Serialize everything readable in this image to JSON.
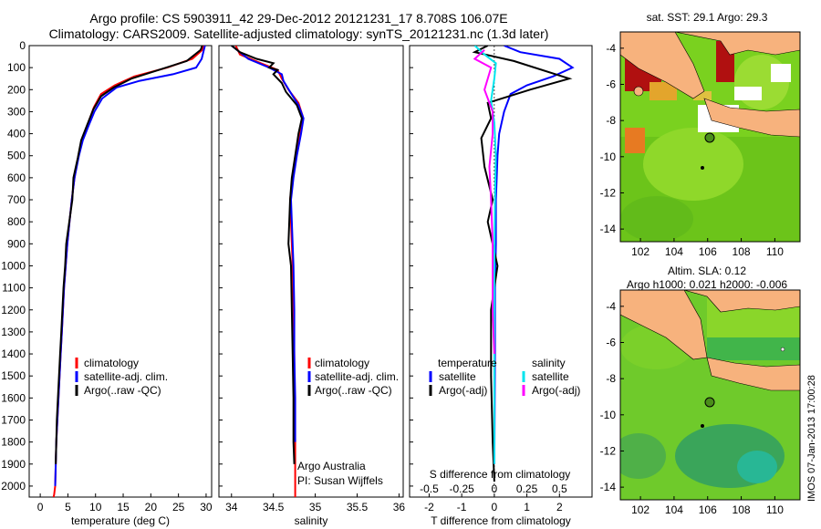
{
  "header": {
    "line1": "Argo profile: CS 5903911_42 29-Dec-2012 20121231_17 8.708S 106.07E",
    "line2": "Climatology: CARS2009. Satellite-adjusted climatology: synTS_20121231.nc (1.3d later)"
  },
  "depth_ticks": [
    "0",
    "100",
    "200",
    "300",
    "400",
    "500",
    "600",
    "700",
    "800",
    "900",
    "1000",
    "1100",
    "1200",
    "1300",
    "1400",
    "1500",
    "1600",
    "1700",
    "1800",
    "1900",
    "2000"
  ],
  "colors": {
    "climatology": "#ff0000",
    "satellite": "#0000ff",
    "argo": "#000000",
    "sal_satellite": "#00e5ee",
    "sal_argo": "#ff00ff",
    "land": "#f7b27d",
    "sst_green": "#7ad11f"
  },
  "panels": {
    "temperature": {
      "xlabel": "temperature (deg C)",
      "ticks": [
        "0",
        "5",
        "10",
        "15",
        "20",
        "25",
        "30"
      ],
      "legend": [
        "climatology",
        "satellite-adj. clim.",
        "Argo(..raw -QC)"
      ]
    },
    "salinity": {
      "xlabel": "salinity",
      "ticks": [
        "34",
        "34.5",
        "35",
        "35.5",
        "36"
      ],
      "legend": [
        "climatology",
        "satellite-adj. clim.",
        "Argo(..raw -QC)"
      ],
      "note1": "Argo Australia",
      "note2": "PI: Susan Wijffels"
    },
    "difference": {
      "xlabel": "T difference from climatology",
      "top_label": "S difference from climatology",
      "ticks_bottom": [
        "-2",
        "-1",
        "0",
        "1",
        "2"
      ],
      "ticks_top": [
        "-0.5",
        "-0.25",
        "0",
        "0.25",
        "0.5"
      ],
      "legend_head_t": "temperature",
      "legend_head_s": "salinity",
      "legend_t": [
        "satellite",
        "Argo(-adj)"
      ],
      "legend_s": [
        "satellite",
        "Argo(-adj)"
      ]
    }
  },
  "maps": {
    "top_title": "sat. SST: 29.1  Argo: 29.3",
    "bottom_title1": "Altim. SLA: 0.12",
    "bottom_title2": "Argo h1000: 0.021  h2000: -0.006",
    "lat_ticks": [
      "-4",
      "-6",
      "-8",
      "-10",
      "-12",
      "-14"
    ],
    "lon_ticks": [
      "102",
      "104",
      "106",
      "108",
      "110"
    ]
  },
  "stamp": "IMOS 07-Jan-2013 17:00:28",
  "chart_data": [
    {
      "type": "line",
      "xlabel": "temperature (deg C)",
      "ylabel": "",
      "xlim": [
        -2,
        31
      ],
      "ylim": [
        2050,
        0
      ],
      "y_inverted": true,
      "series": [
        {
          "name": "climatology",
          "color": "#ff0000",
          "x": [
            29.5,
            29.3,
            27.5,
            23,
            17,
            13.5,
            11,
            9.7,
            8.7,
            7.6,
            6.9,
            6.2,
            5.7,
            5.3,
            4.9,
            4.6,
            4.3,
            4.1,
            3.9,
            3.7,
            3.5,
            3.3,
            3.1,
            2.9,
            2.8,
            2.7,
            2.6,
            2.5,
            2.4
          ],
          "y": [
            0,
            20,
            60,
            100,
            140,
            180,
            220,
            280,
            350,
            420,
            500,
            600,
            700,
            800,
            900,
            1000,
            1100,
            1200,
            1300,
            1400,
            1500,
            1600,
            1700,
            1800,
            1900,
            2000,
            2020,
            2040,
            2050
          ]
        },
        {
          "name": "satellite-adj. clim.",
          "color": "#0000ff",
          "x": [
            29.8,
            29.6,
            29.2,
            28.2,
            24,
            18,
            13.8,
            11.2,
            9.8,
            8.8,
            7.7,
            7.0,
            6.2,
            5.7,
            5.3,
            4.9,
            4.6,
            4.3,
            4.1,
            3.9,
            3.7,
            3.5,
            3.3,
            3.1,
            2.9,
            2.8,
            2.7
          ],
          "y": [
            0,
            20,
            60,
            100,
            130,
            160,
            190,
            240,
            300,
            360,
            430,
            500,
            600,
            700,
            800,
            900,
            1000,
            1100,
            1200,
            1300,
            1400,
            1500,
            1600,
            1700,
            1800,
            1900,
            2000
          ]
        },
        {
          "name": "Argo(..raw -QC)",
          "color": "#000000",
          "x": [
            29.3,
            29.0,
            26.5,
            21.5,
            16.5,
            13.3,
            11.0,
            9.6,
            8.5,
            7.4,
            6.8,
            6.0,
            5.8,
            5.2,
            4.7,
            4.5,
            4.2,
            4.0,
            3.8,
            3.6,
            3.4,
            3.2,
            3.0,
            2.9,
            2.8
          ],
          "y": [
            0,
            20,
            70,
            110,
            150,
            190,
            230,
            290,
            360,
            430,
            510,
            600,
            700,
            810,
            900,
            1000,
            1100,
            1200,
            1300,
            1400,
            1500,
            1600,
            1700,
            1800,
            1900
          ]
        }
      ]
    },
    {
      "type": "line",
      "xlabel": "salinity",
      "ylabel": "",
      "xlim": [
        33.85,
        36.05
      ],
      "ylim": [
        2050,
        0
      ],
      "y_inverted": true,
      "series": [
        {
          "name": "climatology",
          "color": "#ff0000",
          "x": [
            34.05,
            34.1,
            34.35,
            34.55,
            34.6,
            34.68,
            34.8,
            34.85,
            34.82,
            34.77,
            34.73,
            34.7,
            34.71,
            34.72,
            34.73,
            34.74,
            34.75,
            34.75,
            34.76,
            34.76,
            34.76,
            34.76
          ],
          "y": [
            0,
            40,
            80,
            110,
            150,
            200,
            260,
            320,
            400,
            500,
            600,
            700,
            800,
            900,
            1000,
            1200,
            1400,
            1600,
            1800,
            1900,
            2000,
            2050
          ]
        },
        {
          "name": "satellite-adj. clim.",
          "color": "#0000ff",
          "x": [
            34.0,
            34.2,
            34.45,
            34.6,
            34.62,
            34.7,
            34.8,
            34.86,
            34.83,
            34.78,
            34.74,
            34.71,
            34.72,
            34.73,
            34.74,
            34.75,
            34.75,
            34.76,
            34.76
          ],
          "y": [
            0,
            60,
            100,
            130,
            160,
            210,
            270,
            330,
            400,
            500,
            600,
            700,
            800,
            900,
            1000,
            1200,
            1400,
            1600,
            1800
          ]
        },
        {
          "name": "Argo(..raw -QC)",
          "color": "#000000",
          "x": [
            34.0,
            34.1,
            34.3,
            34.5,
            34.45,
            34.55,
            34.5,
            34.6,
            34.65,
            34.78,
            34.84,
            34.8,
            34.76,
            34.72,
            34.7,
            34.68,
            34.71,
            34.72,
            34.73,
            34.74,
            34.74,
            34.75
          ],
          "y": [
            0,
            30,
            60,
            80,
            100,
            110,
            130,
            170,
            210,
            270,
            330,
            400,
            500,
            600,
            700,
            900,
            1000,
            1200,
            1400,
            1600,
            1800,
            1900
          ]
        }
      ]
    },
    {
      "type": "line",
      "xlabel": "T difference from climatology",
      "ylabel": "",
      "xlim": [
        -2.6,
        3.0
      ],
      "ylim": [
        2050,
        0
      ],
      "y_inverted": true,
      "series": [
        {
          "name": "temperature satellite",
          "color": "#0000ff",
          "x": [
            0.3,
            0.8,
            2.0,
            2.4,
            1.8,
            1.0,
            0.5,
            0.3,
            0.15,
            0.1,
            0.05,
            0.05,
            0.02,
            0.02,
            0.0
          ],
          "y": [
            0,
            30,
            60,
            100,
            140,
            180,
            220,
            300,
            400,
            500,
            700,
            900,
            1100,
            1400,
            1900
          ]
        },
        {
          "name": "temperature Argo(-adj)",
          "color": "#000000",
          "x": [
            -0.2,
            -0.6,
            0.6,
            2.3,
            1.1,
            -0.2,
            -0.1,
            -0.4,
            -0.3,
            -0.05,
            -0.2,
            0.1,
            -0.1,
            -0.1,
            -0.05,
            0.0
          ],
          "y": [
            0,
            30,
            70,
            150,
            200,
            260,
            330,
            420,
            550,
            700,
            800,
            1000,
            1200,
            1500,
            1800,
            1980
          ]
        },
        {
          "name": "salinity satellite",
          "color": "#00e5ee",
          "x": [
            -0.6,
            -0.3,
            0.05,
            0.0,
            -0.1,
            0.0,
            0.05,
            0.02,
            0.0,
            0.0,
            0.0
          ],
          "y": [
            0,
            40,
            80,
            150,
            250,
            350,
            500,
            700,
            1000,
            1400,
            1900
          ]
        },
        {
          "name": "salinity Argo(-adj)",
          "color": "#ff00ff",
          "x": [
            -0.3,
            -0.6,
            -0.1,
            -0.3,
            -0.05,
            -0.05,
            -0.15,
            -0.1,
            -0.05,
            -0.05,
            0.0
          ],
          "y": [
            20,
            60,
            100,
            200,
            300,
            400,
            550,
            700,
            900,
            1200,
            1400
          ]
        }
      ]
    }
  ]
}
